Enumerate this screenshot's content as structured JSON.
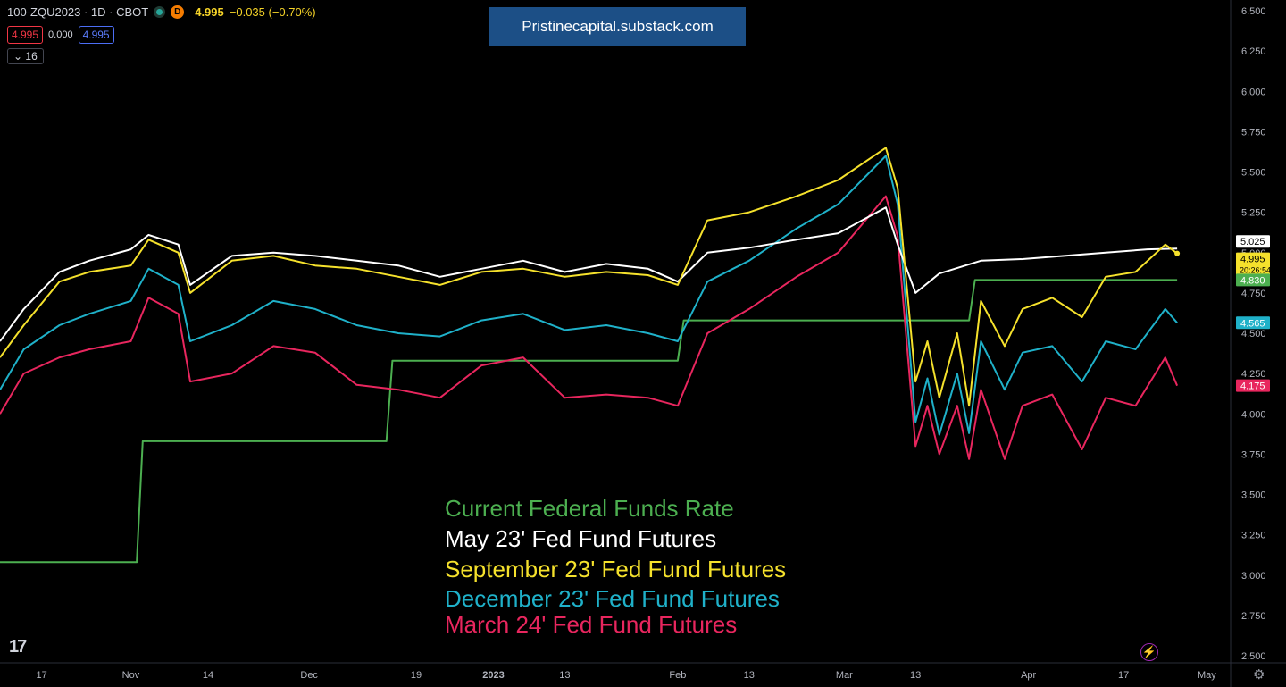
{
  "header": {
    "symbol": "100-ZQU2023 · 1D · CBOT",
    "interval_badge": "D",
    "price": "4.995",
    "change": "−0.035 (−0.70%)",
    "bid": "4.995",
    "spread": "0.000",
    "ask": "4.995",
    "indicators_toggle": "16"
  },
  "banner": {
    "text": "Pristinecapital.substack.com"
  },
  "colors": {
    "background": "#000000",
    "fed_funds": "#4caf50",
    "may23": "#ffffff",
    "sep23": "#f5e12c",
    "dec23": "#1fb1c9",
    "mar24": "#e8265e"
  },
  "icons": {
    "logo": "tradingview-logo-icon",
    "bolt": "lightning-bolt-icon",
    "settings": "gear-icon"
  },
  "chart_data": {
    "type": "line",
    "y_axis_ticks": [
      "6.500",
      "6.250",
      "6.000",
      "5.750",
      "5.500",
      "5.250",
      "5.000",
      "4.750",
      "4.500",
      "4.250",
      "4.000",
      "3.750",
      "3.500",
      "3.250",
      "3.000",
      "2.750",
      "2.500"
    ],
    "ylim": [
      2.5,
      6.5
    ],
    "x_axis_ticks": [
      "17",
      "Nov",
      "14",
      "Dec",
      "19",
      "2023",
      "13",
      "Feb",
      "13",
      "Mar",
      "13",
      "Apr",
      "17",
      "May"
    ],
    "x_range": [
      "2022-10-10",
      "2023-05-05"
    ],
    "x_tick_dates": [
      "2022-10-17",
      "2022-11-01",
      "2022-11-14",
      "2022-12-01",
      "2022-12-19",
      "2023-01-01",
      "2023-01-13",
      "2023-02-01",
      "2023-02-13",
      "2023-03-01",
      "2023-03-13",
      "2023-04-01",
      "2023-04-17",
      "2023-05-01"
    ],
    "grid": false,
    "series": [
      {
        "name": "Current Federal Funds Rate",
        "color": "#4caf50",
        "step": true,
        "points": [
          [
            "2022-10-10",
            3.08
          ],
          [
            "2022-11-02",
            3.08
          ],
          [
            "2022-11-03",
            3.83
          ],
          [
            "2022-12-14",
            3.83
          ],
          [
            "2022-12-15",
            4.33
          ],
          [
            "2023-02-01",
            4.33
          ],
          [
            "2023-02-02",
            4.58
          ],
          [
            "2023-03-22",
            4.58
          ],
          [
            "2023-03-23",
            4.83
          ],
          [
            "2023-04-26",
            4.83
          ]
        ],
        "last_value": "4.830"
      },
      {
        "name": "May 23' Fed Fund Futures",
        "color": "#ffffff",
        "points": [
          [
            "2022-10-10",
            4.45
          ],
          [
            "2022-10-14",
            4.65
          ],
          [
            "2022-10-20",
            4.88
          ],
          [
            "2022-10-25",
            4.95
          ],
          [
            "2022-11-01",
            5.02
          ],
          [
            "2022-11-04",
            5.11
          ],
          [
            "2022-11-09",
            5.05
          ],
          [
            "2022-11-11",
            4.8
          ],
          [
            "2022-11-18",
            4.98
          ],
          [
            "2022-11-25",
            5.0
          ],
          [
            "2022-12-02",
            4.98
          ],
          [
            "2022-12-09",
            4.95
          ],
          [
            "2022-12-16",
            4.92
          ],
          [
            "2022-12-23",
            4.85
          ],
          [
            "2022-12-30",
            4.9
          ],
          [
            "2023-01-06",
            4.95
          ],
          [
            "2023-01-13",
            4.88
          ],
          [
            "2023-01-20",
            4.93
          ],
          [
            "2023-01-27",
            4.9
          ],
          [
            "2023-02-01",
            4.82
          ],
          [
            "2023-02-06",
            5.0
          ],
          [
            "2023-02-13",
            5.03
          ],
          [
            "2023-02-21",
            5.08
          ],
          [
            "2023-02-28",
            5.12
          ],
          [
            "2023-03-08",
            5.28
          ],
          [
            "2023-03-10",
            5.05
          ],
          [
            "2023-03-13",
            4.75
          ],
          [
            "2023-03-17",
            4.87
          ],
          [
            "2023-03-24",
            4.95
          ],
          [
            "2023-03-31",
            4.96
          ],
          [
            "2023-04-07",
            4.98
          ],
          [
            "2023-04-14",
            5.0
          ],
          [
            "2023-04-21",
            5.02
          ],
          [
            "2023-04-26",
            5.025
          ]
        ],
        "last_value": "5.025"
      },
      {
        "name": "September 23' Fed Fund Futures",
        "color": "#f5e12c",
        "points": [
          [
            "2022-10-10",
            4.35
          ],
          [
            "2022-10-14",
            4.55
          ],
          [
            "2022-10-20",
            4.82
          ],
          [
            "2022-10-25",
            4.88
          ],
          [
            "2022-11-01",
            4.92
          ],
          [
            "2022-11-04",
            5.08
          ],
          [
            "2022-11-09",
            5.0
          ],
          [
            "2022-11-11",
            4.75
          ],
          [
            "2022-11-18",
            4.95
          ],
          [
            "2022-11-25",
            4.98
          ],
          [
            "2022-12-02",
            4.92
          ],
          [
            "2022-12-09",
            4.9
          ],
          [
            "2022-12-16",
            4.85
          ],
          [
            "2022-12-23",
            4.8
          ],
          [
            "2022-12-30",
            4.88
          ],
          [
            "2023-01-06",
            4.9
          ],
          [
            "2023-01-13",
            4.85
          ],
          [
            "2023-01-20",
            4.88
          ],
          [
            "2023-01-27",
            4.86
          ],
          [
            "2023-02-01",
            4.8
          ],
          [
            "2023-02-06",
            5.2
          ],
          [
            "2023-02-13",
            5.25
          ],
          [
            "2023-02-21",
            5.35
          ],
          [
            "2023-02-28",
            5.45
          ],
          [
            "2023-03-08",
            5.65
          ],
          [
            "2023-03-10",
            5.4
          ],
          [
            "2023-03-13",
            4.2
          ],
          [
            "2023-03-15",
            4.45
          ],
          [
            "2023-03-17",
            4.1
          ],
          [
            "2023-03-20",
            4.5
          ],
          [
            "2023-03-22",
            4.05
          ],
          [
            "2023-03-24",
            4.7
          ],
          [
            "2023-03-28",
            4.42
          ],
          [
            "2023-03-31",
            4.65
          ],
          [
            "2023-04-05",
            4.72
          ],
          [
            "2023-04-10",
            4.6
          ],
          [
            "2023-04-14",
            4.85
          ],
          [
            "2023-04-19",
            4.88
          ],
          [
            "2023-04-24",
            5.05
          ],
          [
            "2023-04-26",
            4.995
          ]
        ],
        "last_value": "4.995"
      },
      {
        "name": "December 23' Fed Fund Futures",
        "color": "#1fb1c9",
        "points": [
          [
            "2022-10-10",
            4.15
          ],
          [
            "2022-10-14",
            4.4
          ],
          [
            "2022-10-20",
            4.55
          ],
          [
            "2022-10-25",
            4.62
          ],
          [
            "2022-11-01",
            4.7
          ],
          [
            "2022-11-04",
            4.9
          ],
          [
            "2022-11-09",
            4.8
          ],
          [
            "2022-11-11",
            4.45
          ],
          [
            "2022-11-18",
            4.55
          ],
          [
            "2022-11-25",
            4.7
          ],
          [
            "2022-12-02",
            4.65
          ],
          [
            "2022-12-09",
            4.55
          ],
          [
            "2022-12-16",
            4.5
          ],
          [
            "2022-12-23",
            4.48
          ],
          [
            "2022-12-30",
            4.58
          ],
          [
            "2023-01-06",
            4.62
          ],
          [
            "2023-01-13",
            4.52
          ],
          [
            "2023-01-20",
            4.55
          ],
          [
            "2023-01-27",
            4.5
          ],
          [
            "2023-02-01",
            4.45
          ],
          [
            "2023-02-06",
            4.82
          ],
          [
            "2023-02-13",
            4.95
          ],
          [
            "2023-02-21",
            5.15
          ],
          [
            "2023-02-28",
            5.3
          ],
          [
            "2023-03-08",
            5.6
          ],
          [
            "2023-03-10",
            5.3
          ],
          [
            "2023-03-13",
            3.95
          ],
          [
            "2023-03-15",
            4.22
          ],
          [
            "2023-03-17",
            3.87
          ],
          [
            "2023-03-20",
            4.25
          ],
          [
            "2023-03-22",
            3.88
          ],
          [
            "2023-03-24",
            4.45
          ],
          [
            "2023-03-28",
            4.15
          ],
          [
            "2023-03-31",
            4.38
          ],
          [
            "2023-04-05",
            4.42
          ],
          [
            "2023-04-10",
            4.2
          ],
          [
            "2023-04-14",
            4.45
          ],
          [
            "2023-04-19",
            4.4
          ],
          [
            "2023-04-24",
            4.65
          ],
          [
            "2023-04-26",
            4.565
          ]
        ],
        "last_value": "4.565"
      },
      {
        "name": "March 24' Fed Fund Futures",
        "color": "#e8265e",
        "points": [
          [
            "2022-10-10",
            4.0
          ],
          [
            "2022-10-14",
            4.25
          ],
          [
            "2022-10-20",
            4.35
          ],
          [
            "2022-10-25",
            4.4
          ],
          [
            "2022-11-01",
            4.45
          ],
          [
            "2022-11-04",
            4.72
          ],
          [
            "2022-11-09",
            4.62
          ],
          [
            "2022-11-11",
            4.2
          ],
          [
            "2022-11-18",
            4.25
          ],
          [
            "2022-11-25",
            4.42
          ],
          [
            "2022-12-02",
            4.38
          ],
          [
            "2022-12-09",
            4.18
          ],
          [
            "2022-12-16",
            4.15
          ],
          [
            "2022-12-23",
            4.1
          ],
          [
            "2022-12-30",
            4.3
          ],
          [
            "2023-01-06",
            4.35
          ],
          [
            "2023-01-13",
            4.1
          ],
          [
            "2023-01-20",
            4.12
          ],
          [
            "2023-01-27",
            4.1
          ],
          [
            "2023-02-01",
            4.05
          ],
          [
            "2023-02-06",
            4.5
          ],
          [
            "2023-02-13",
            4.65
          ],
          [
            "2023-02-21",
            4.85
          ],
          [
            "2023-02-28",
            5.0
          ],
          [
            "2023-03-08",
            5.35
          ],
          [
            "2023-03-10",
            5.1
          ],
          [
            "2023-03-13",
            3.8
          ],
          [
            "2023-03-15",
            4.05
          ],
          [
            "2023-03-17",
            3.75
          ],
          [
            "2023-03-20",
            4.05
          ],
          [
            "2023-03-22",
            3.72
          ],
          [
            "2023-03-24",
            4.15
          ],
          [
            "2023-03-28",
            3.72
          ],
          [
            "2023-03-31",
            4.05
          ],
          [
            "2023-04-05",
            4.12
          ],
          [
            "2023-04-10",
            3.78
          ],
          [
            "2023-04-14",
            4.1
          ],
          [
            "2023-04-19",
            4.05
          ],
          [
            "2023-04-24",
            4.35
          ],
          [
            "2023-04-26",
            4.175
          ]
        ],
        "last_value": "4.175"
      }
    ],
    "price_line_timer": "20:26:54",
    "legend_placement": "center-bottom"
  }
}
